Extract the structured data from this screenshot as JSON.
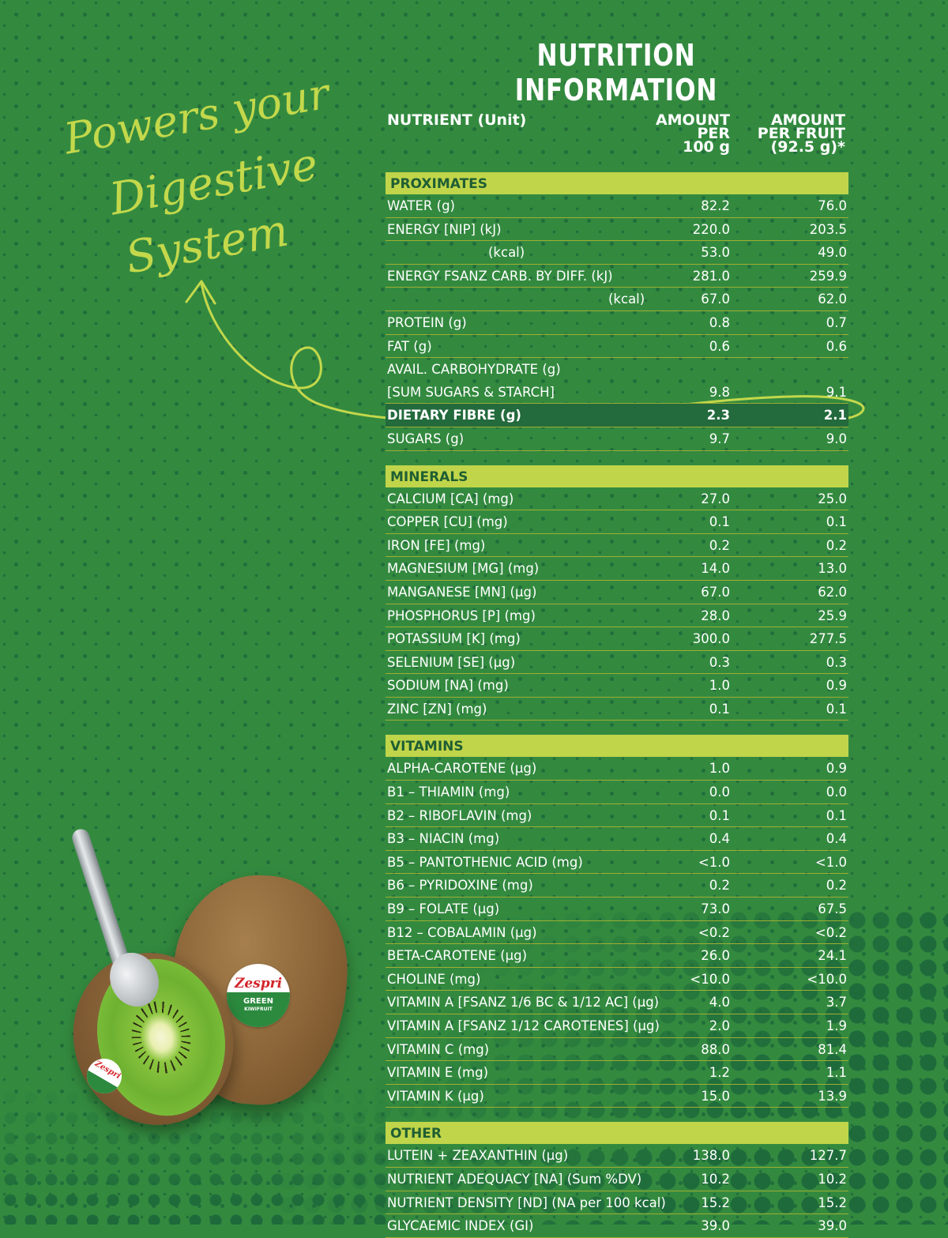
{
  "page": {
    "title": "NUTRITION INFORMATION",
    "headline_lines": [
      "Powers your",
      "Digestive",
      "System"
    ],
    "colors": {
      "background": "#338a3f",
      "dots": "#1f6a3a",
      "accent_lime": "#c0d54a",
      "section_text": "#1f5e33",
      "highlight_row": "#236a3c",
      "row_rule": "#9fae33",
      "text": "#ffffff"
    }
  },
  "product": {
    "sticker_brand": "Zespri",
    "sticker_variety": "GREEN",
    "sticker_sub": "KIWIFRUIT"
  },
  "table": {
    "headers": {
      "nutrient": "NUTRIENT (Unit)",
      "per100_lines": [
        "AMOUNT",
        "PER",
        "100 g"
      ],
      "perfruit_lines": [
        "AMOUNT",
        "PER FRUIT",
        "(92.5 g)*"
      ]
    },
    "sections": [
      {
        "title": "PROXIMATES",
        "rows": [
          {
            "name": "WATER (g)",
            "per100": "82.2",
            "perfruit": "76.0"
          },
          {
            "name": "ENERGY [NIP]  (kJ)",
            "per100": "220.0",
            "perfruit": "203.5"
          },
          {
            "name": "(kcal)",
            "per100": "53.0",
            "perfruit": "49.0",
            "indent": 1
          },
          {
            "name": "ENERGY FSANZ CARB. BY DIFF.  (kJ)",
            "per100": "281.0",
            "perfruit": "259.9"
          },
          {
            "name": "(kcal)",
            "per100": "67.0",
            "perfruit": "62.0",
            "indent": 2
          },
          {
            "name": "PROTEIN (g)",
            "per100": "0.8",
            "perfruit": "0.7"
          },
          {
            "name": "FAT (g)",
            "per100": "0.6",
            "perfruit": "0.6"
          },
          {
            "name": "AVAIL. CARBOHYDRATE (g)",
            "per100": "",
            "perfruit": ""
          },
          {
            "name": "[SUM SUGARS & STARCH]",
            "per100": "9.8",
            "perfruit": "9.1"
          },
          {
            "name": "DIETARY  FIBRE (g)",
            "per100": "2.3",
            "perfruit": "2.1",
            "highlight": true
          },
          {
            "name": "SUGARS (g)",
            "per100": "9.7",
            "perfruit": "9.0"
          }
        ]
      },
      {
        "title": "MINERALS",
        "rows": [
          {
            "name": "CALCIUM [CA] (mg)",
            "per100": "27.0",
            "perfruit": "25.0"
          },
          {
            "name": "COPPER [CU] (mg)",
            "per100": "0.1",
            "perfruit": "0.1"
          },
          {
            "name": "IRON [FE] (mg)",
            "per100": "0.2",
            "perfruit": "0.2"
          },
          {
            "name": "MAGNESIUM [MG] (mg)",
            "per100": "14.0",
            "perfruit": "13.0"
          },
          {
            "name": "MANGANESE [MN] (µg)",
            "per100": "67.0",
            "perfruit": "62.0"
          },
          {
            "name": "PHOSPHORUS [P] (mg)",
            "per100": "28.0",
            "perfruit": "25.9"
          },
          {
            "name": "POTASSIUM [K] (mg)",
            "per100": "300.0",
            "perfruit": "277.5"
          },
          {
            "name": "SELENIUM [SE] (µg)",
            "per100": "0.3",
            "perfruit": "0.3"
          },
          {
            "name": "SODIUM [NA] (mg)",
            "per100": "1.0",
            "perfruit": "0.9"
          },
          {
            "name": "ZINC [ZN] (mg)",
            "per100": "0.1",
            "perfruit": "0.1"
          }
        ]
      },
      {
        "title": "VITAMINS",
        "rows": [
          {
            "name": "ALPHA-CAROTENE (µg)",
            "per100": "1.0",
            "perfruit": "0.9"
          },
          {
            "name": "B1 – THIAMIN (mg)",
            "per100": "0.0",
            "perfruit": "0.0"
          },
          {
            "name": "B2 – RIBOFLAVIN (mg)",
            "per100": "0.1",
            "perfruit": "0.1"
          },
          {
            "name": "B3 – NIACIN (mg)",
            "per100": "0.4",
            "perfruit": "0.4"
          },
          {
            "name": "B5 – PANTOTHENIC ACID (mg)",
            "per100": "<1.0",
            "perfruit": "<1.0"
          },
          {
            "name": "B6 – PYRIDOXINE (mg)",
            "per100": "0.2",
            "perfruit": "0.2"
          },
          {
            "name": "B9 – FOLATE (µg)",
            "per100": "73.0",
            "perfruit": "67.5"
          },
          {
            "name": "B12 – COBALAMIN (µg)",
            "per100": "<0.2",
            "perfruit": "<0.2"
          },
          {
            "name": "BETA-CAROTENE (µg)",
            "per100": "26.0",
            "perfruit": "24.1"
          },
          {
            "name": "CHOLINE (mg)",
            "per100": "<10.0",
            "perfruit": "<10.0"
          },
          {
            "name": "VITAMIN A [FSANZ 1/6 BC & 1/12 AC] (µg)",
            "per100": "4.0",
            "perfruit": "3.7"
          },
          {
            "name": "VITAMIN A [FSANZ 1/12 CAROTENES] (µg)",
            "per100": "2.0",
            "perfruit": "1.9"
          },
          {
            "name": "VITAMIN C (mg)",
            "per100": "88.0",
            "perfruit": "81.4"
          },
          {
            "name": "VITAMIN E (mg)",
            "per100": "1.2",
            "perfruit": "1.1"
          },
          {
            "name": "VITAMIN K (µg)",
            "per100": "15.0",
            "perfruit": "13.9"
          }
        ]
      },
      {
        "title": "OTHER",
        "rows": [
          {
            "name": "LUTEIN + ZEAXANTHIN (µg)",
            "per100": "138.0",
            "perfruit": "127.7"
          },
          {
            "name": "NUTRIENT ADEQUACY [NA] (Sum %DV)",
            "per100": "10.2",
            "perfruit": "10.2"
          },
          {
            "name": "NUTRIENT DENSITY [ND] (NA per 100 kcal)",
            "per100": "15.2",
            "perfruit": "15.2"
          },
          {
            "name": "GLYCAEMIC INDEX (GI)",
            "per100": "39.0",
            "perfruit": "39.0"
          }
        ]
      }
    ]
  }
}
